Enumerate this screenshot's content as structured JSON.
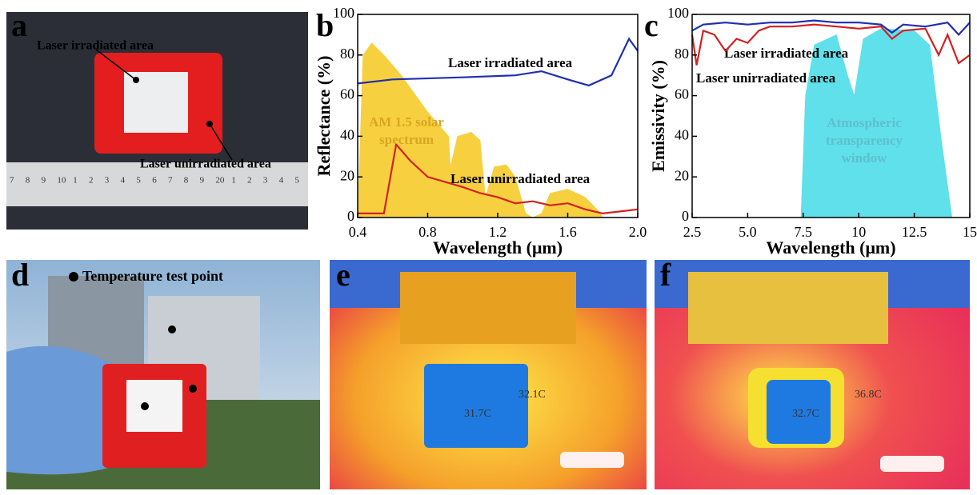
{
  "panels": {
    "a": {
      "label": "a",
      "irradiated": "Laser irradiated area",
      "unirradiated": "Laser unirradiated area",
      "ruler": [
        "7",
        "8",
        "9",
        "10",
        "1",
        "2",
        "3",
        "4",
        "5",
        "6",
        "7",
        "8",
        "9",
        "20",
        "1",
        "2",
        "3",
        "4",
        "5"
      ]
    },
    "b": {
      "label": "b"
    },
    "c": {
      "label": "c"
    },
    "d": {
      "label": "d",
      "legend": "Temperature test point"
    },
    "e": {
      "label": "e",
      "temps": [
        "31.7C",
        "32.1C"
      ]
    },
    "f": {
      "label": "f",
      "temps": [
        "32.7C",
        "36.8C"
      ]
    }
  },
  "chart_data": [
    {
      "type": "line",
      "xlabel": "Wavelength (μm)",
      "ylabel": "Reflectance (%)",
      "xlim": [
        0.4,
        2.0
      ],
      "xticks": [
        0.4,
        0.8,
        1.2,
        1.6,
        {
          "value": 2,
          "label": "2.0"
        }
      ],
      "ylim": [
        0,
        100
      ],
      "yticks": [
        0,
        20,
        40,
        60,
        80,
        100
      ],
      "series": [
        {
          "name": "AM 1.5 solar spectrum",
          "color": "#f7d040",
          "area": true,
          "x": [
            0.4,
            0.43,
            0.48,
            0.55,
            0.65,
            0.75,
            0.8,
            0.88,
            0.92,
            0.93,
            0.97,
            1.05,
            1.1,
            1.13,
            1.18,
            1.25,
            1.3,
            1.36,
            1.4,
            1.45,
            1.5,
            1.6,
            1.7,
            1.78,
            1.8
          ],
          "values": [
            0,
            80,
            86,
            80,
            70,
            58,
            52,
            44,
            40,
            25,
            40,
            42,
            38,
            10,
            25,
            26,
            20,
            2,
            0,
            2,
            12,
            14,
            10,
            3,
            0
          ]
        },
        {
          "name": "Laser irradiated area",
          "color": "#1f2fb0",
          "x": [
            0.4,
            0.6,
            1.0,
            1.3,
            1.45,
            1.6,
            1.72,
            1.85,
            1.95,
            2.0
          ],
          "values": [
            66,
            68,
            69,
            70,
            72,
            68,
            65,
            70,
            88,
            82
          ]
        },
        {
          "name": "Laser unirradiated area",
          "color": "#d42020",
          "x": [
            0.4,
            0.55,
            0.62,
            0.7,
            0.8,
            1.0,
            1.1,
            1.2,
            1.3,
            1.4,
            1.5,
            1.6,
            1.7,
            1.8,
            1.9,
            2.0
          ],
          "values": [
            2,
            2,
            36,
            28,
            20,
            15,
            12,
            10,
            7,
            8,
            6,
            7,
            4,
            2,
            3,
            4
          ]
        }
      ]
    },
    {
      "type": "line",
      "xlabel": "Wavelength (μm)",
      "ylabel": "Emissivity (%)",
      "xlim": [
        2.5,
        15
      ],
      "xticks": [
        2.5,
        {
          "value": 5,
          "label": "5.0"
        },
        7.5,
        10,
        12.5,
        15
      ],
      "ylim": [
        0,
        100
      ],
      "yticks": [
        0,
        20,
        40,
        60,
        80,
        100
      ],
      "series": [
        {
          "name": "Atmospheric transparency window",
          "color": "#5fe0ea",
          "area": true,
          "x": [
            7.4,
            7.6,
            8,
            9,
            9.5,
            9.8,
            10.2,
            11,
            12.5,
            13.2,
            13.7,
            14.2
          ],
          "values": [
            0,
            60,
            85,
            90,
            70,
            60,
            88,
            93,
            92,
            85,
            40,
            0
          ]
        },
        {
          "name": "Laser irradiated area",
          "color": "#1f2fb0",
          "x": [
            2.5,
            3,
            4,
            5,
            6,
            7,
            8,
            9,
            10,
            11,
            11.5,
            12,
            13,
            14,
            14.5,
            15
          ],
          "values": [
            92,
            95,
            96,
            95,
            96,
            96,
            97,
            96,
            96,
            95,
            91,
            95,
            94,
            96,
            90,
            96
          ]
        },
        {
          "name": "Laser unirradiated area",
          "color": "#d42020",
          "x": [
            2.5,
            2.7,
            3,
            3.5,
            4,
            4.5,
            5,
            5.5,
            6,
            7,
            8,
            9,
            10,
            11,
            11.5,
            12,
            13,
            13.6,
            14,
            14.5,
            15
          ],
          "values": [
            90,
            75,
            92,
            90,
            82,
            88,
            86,
            92,
            94,
            94,
            95,
            94,
            93,
            94,
            88,
            92,
            93,
            80,
            90,
            76,
            80
          ]
        }
      ]
    }
  ]
}
